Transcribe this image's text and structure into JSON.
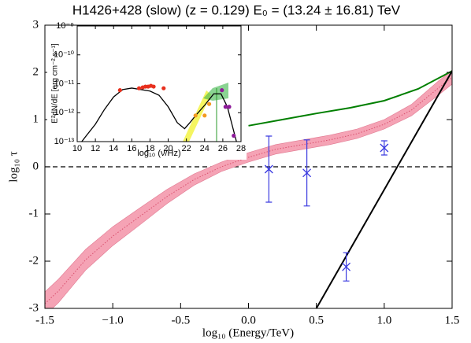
{
  "chart_data": [
    {
      "type": "line",
      "title": "H1426+428 (slow) (z = 0.129) E₀ = (13.24 ± 16.81) TeV",
      "xlabel": "log₁₀ (Energy/TeV)",
      "ylabel": "log₁₀ τ",
      "xlim": [
        -1.5,
        1.5
      ],
      "ylim": [
        -3,
        3
      ],
      "xticks": [
        -1.5,
        {
          "value": -1,
          "label": "−1.0"
        },
        -0.5,
        {
          "value": 0,
          "label": "0.0"
        },
        0.5,
        {
          "value": 1,
          "label": "1.0"
        },
        1.5
      ],
      "yticks": [
        -3,
        -2,
        -1,
        0,
        1,
        2,
        3
      ],
      "hline": 0,
      "series": [
        {
          "type": "band",
          "color": "#f5a3b5",
          "x": [
            -1.5,
            -1.4,
            -1.2,
            -1.0,
            -0.8,
            -0.6,
            -0.4,
            -0.2,
            0,
            0.2,
            0.4,
            0.6,
            0.8,
            1.0,
            1.2,
            1.4,
            1.5
          ],
          "lower": [
            -3.15,
            -2.88,
            -2.19,
            -1.67,
            -1.23,
            -0.78,
            -0.39,
            -0.1,
            0.1,
            0.27,
            0.37,
            0.47,
            0.6,
            0.8,
            1.08,
            1.52,
            1.75
          ],
          "upper": [
            -2.65,
            -2.38,
            -1.75,
            -1.27,
            -0.87,
            -0.48,
            -0.15,
            0.1,
            0.3,
            0.47,
            0.57,
            0.67,
            0.8,
            1.0,
            1.32,
            1.82,
            2.05
          ]
        },
        {
          "type": "line",
          "color": "#d9506e",
          "dash": "1.5 2",
          "width": 1,
          "x": [
            -1.5,
            -1.4,
            -1.2,
            -1.0,
            -0.8,
            -0.6,
            -0.4,
            -0.2,
            0,
            0.2,
            0.4,
            0.6,
            0.8,
            1.0,
            1.2,
            1.4,
            1.5
          ],
          "values": [
            -2.9,
            -2.63,
            -1.97,
            -1.47,
            -1.05,
            -0.63,
            -0.27,
            0.0,
            0.2,
            0.37,
            0.47,
            0.57,
            0.7,
            0.9,
            1.2,
            1.67,
            1.9
          ]
        },
        {
          "type": "line",
          "color": "#007f00",
          "width": 2,
          "x": [
            0,
            0.25,
            0.5,
            0.75,
            1.0,
            1.25,
            1.5
          ],
          "values": [
            0.87,
            1.0,
            1.13,
            1.25,
            1.4,
            1.65,
            2.03
          ]
        },
        {
          "type": "line",
          "color": "#000000",
          "width": 2,
          "x": [
            0.5,
            1.5
          ],
          "values": [
            -3,
            2.03
          ]
        },
        {
          "type": "errorbar",
          "color": "#3a3ae0",
          "x": [
            0.15,
            0.43,
            0.72,
            1.0
          ],
          "values": [
            -0.05,
            -0.13,
            -2.12,
            0.4
          ],
          "errors": [
            0.7,
            0.7,
            0.3,
            0.15
          ]
        }
      ]
    },
    {
      "type": "line",
      "xlabel": "log₁₀ (ν/Hz)",
      "ylabel": "E²dN/dE [erg cm⁻² s⁻¹]",
      "xlim": [
        10,
        28
      ],
      "ylim": [
        1e-13,
        1e-09
      ],
      "ylog": true,
      "xticks": [
        10,
        12,
        14,
        16,
        18,
        20,
        22,
        24,
        26,
        28
      ],
      "yticks": [
        {
          "value": 1e-13,
          "label": "10⁻¹³"
        },
        {
          "value": 1e-12,
          "label": "10⁻¹²"
        },
        {
          "value": 1e-11,
          "label": "10⁻¹¹"
        },
        {
          "value": 1e-10,
          "label": "10⁻¹⁰"
        },
        {
          "value": 1e-09,
          "label": "10⁻⁹"
        }
      ],
      "series": [
        {
          "type": "line",
          "color": "#000000",
          "width": 1.3,
          "x": [
            10.5,
            11,
            12,
            13,
            14,
            15,
            16,
            17,
            18,
            19,
            20,
            21,
            21.8,
            22.5,
            23,
            24,
            25,
            25.8,
            26.5,
            27,
            27.5
          ],
          "values": [
            1e-13,
            1.6e-13,
            4e-13,
            1.3e-12,
            3.5e-12,
            6.3e-12,
            7.1e-12,
            6.3e-12,
            5.6e-12,
            4e-12,
            1.6e-12,
            4.5e-13,
            2.8e-13,
            5e-13,
            7.9e-13,
            1.8e-12,
            4.5e-12,
            4.5e-12,
            1.6e-12,
            4e-13,
            1e-13
          ]
        },
        {
          "type": "points",
          "color": "#e8301e",
          "x": [
            14.7,
            16.8,
            17.2,
            17.5,
            17.8,
            18.1,
            18.4,
            19.5
          ],
          "values": [
            6e-12,
            7e-12,
            7.5e-12,
            8e-12,
            8e-12,
            8.5e-12,
            8e-12,
            7e-12
          ]
        },
        {
          "type": "points",
          "color": "#f39a20",
          "x": [
            23,
            24,
            24.5
          ],
          "values": [
            8e-13,
            8e-13,
            2e-12
          ]
        },
        {
          "type": "points",
          "color": "#8e1a9a",
          "x": [
            25.9,
            26.3,
            26.7,
            27.2
          ],
          "values": [
            6e-12,
            1.6e-12,
            1.6e-12,
            1.6e-13
          ]
        }
      ]
    }
  ]
}
